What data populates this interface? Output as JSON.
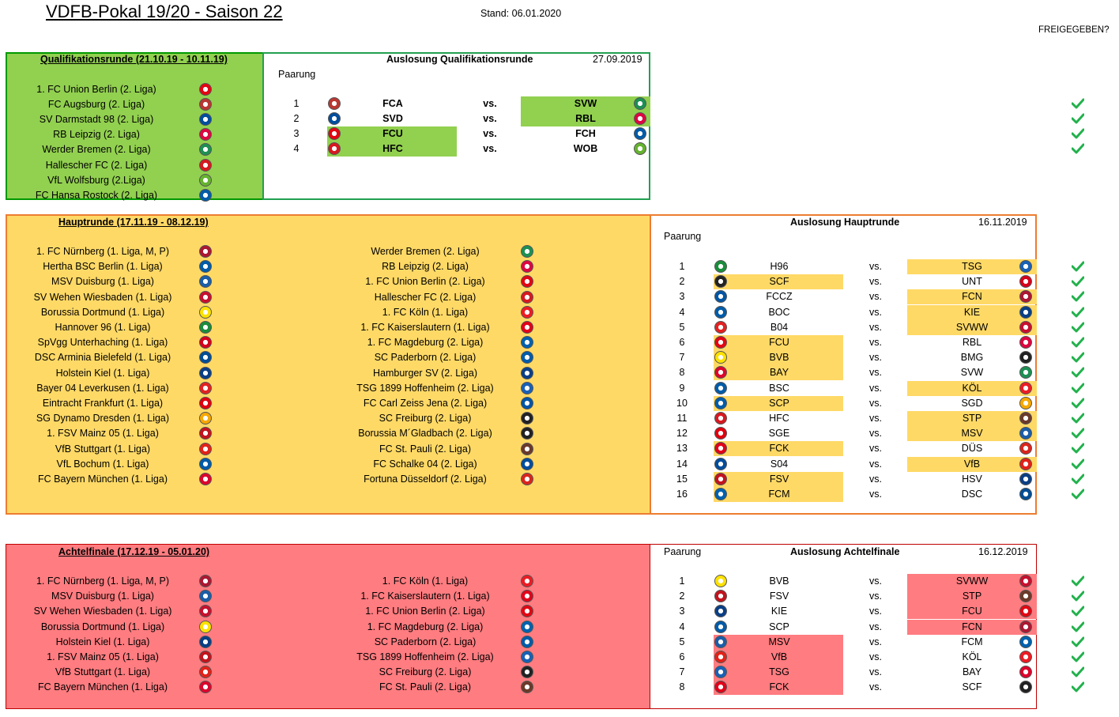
{
  "header": {
    "title": "VDFB-Pokal 19/20 - Saison 22",
    "stand": "Stand: 06.01.2020",
    "freigegeben": "FREIGEGEBEN?"
  },
  "colors": {
    "check": "#22b14c",
    "quali": "#92d050",
    "haupt": "#ffd966",
    "achtel": "#ff7c80"
  },
  "quali": {
    "title": "Qualifikationsrunde (21.10.19 - 10.11.19)",
    "draw_title": "Auslosung Qualifikationsrunde",
    "draw_date": "27.09.2019",
    "paarung": "Paarung",
    "vs": "vs.",
    "teams": [
      {
        "name": "1. FC Union Berlin (2. Liga)",
        "logo": "union-berlin-logo",
        "color": "#e30613"
      },
      {
        "name": "FC Augsburg (2. Liga)",
        "logo": "augsburg-logo",
        "color": "#ba3733"
      },
      {
        "name": "SV Darmstadt 98 (2. Liga)",
        "logo": "darmstadt-logo",
        "color": "#004e9f"
      },
      {
        "name": "RB Leipzig (2. Liga)",
        "logo": "leipzig-logo",
        "color": "#dd0741"
      },
      {
        "name": "Werder Bremen (2. Liga)",
        "logo": "werder-logo",
        "color": "#1d9053"
      },
      {
        "name": "Hallescher FC (2. Liga)",
        "logo": "halle-logo",
        "color": "#d71920"
      },
      {
        "name": "VfL Wolfsburg (2.Liga)",
        "logo": "wolfsburg-logo",
        "color": "#65b32e"
      },
      {
        "name": "FC Hansa Rostock (2. Liga)",
        "logo": "rostock-logo",
        "color": "#005ca9"
      }
    ],
    "matches": [
      {
        "n": "1",
        "home": "FCA",
        "home_logo": "augsburg-logo",
        "home_color": "#ba3733",
        "away": "SVW",
        "away_logo": "werder-logo",
        "away_color": "#1d9053",
        "winner": "away"
      },
      {
        "n": "2",
        "home": "SVD",
        "home_logo": "darmstadt-logo",
        "home_color": "#004e9f",
        "away": "RBL",
        "away_logo": "leipzig-logo",
        "away_color": "#dd0741",
        "winner": "away"
      },
      {
        "n": "3",
        "home": "FCU",
        "home_logo": "union-berlin-logo",
        "home_color": "#e30613",
        "away": "FCH",
        "away_logo": "rostock-logo",
        "away_color": "#005ca9",
        "winner": "home"
      },
      {
        "n": "4",
        "home": "HFC",
        "home_logo": "halle-logo",
        "home_color": "#d71920",
        "away": "WOB",
        "away_logo": "wolfsburg-logo",
        "away_color": "#65b32e",
        "winner": "home"
      }
    ]
  },
  "haupt": {
    "title": "Hauptrunde (17.11.19 - 08.12.19)",
    "draw_title": "Auslosung Hauptrunde",
    "draw_date": "16.11.2019",
    "paarung": "Paarung",
    "vs": "vs.",
    "left": [
      {
        "name": "1. FC Nürnberg (1. Liga, M, P)",
        "logo": "nuernberg-logo",
        "color": "#ad1732"
      },
      {
        "name": "Hertha BSC Berlin (1. Liga)",
        "logo": "hertha-logo",
        "color": "#005ca9"
      },
      {
        "name": "MSV Duisburg (1. Liga)",
        "logo": "duisburg-logo",
        "color": "#1b5ea8"
      },
      {
        "name": "SV Wehen Wiesbaden (1. Liga)",
        "logo": "wiesbaden-logo",
        "color": "#c8102e"
      },
      {
        "name": "Borussia Dortmund (1. Liga)",
        "logo": "dortmund-logo",
        "color": "#fde100"
      },
      {
        "name": "Hannover 96 (1. Liga)",
        "logo": "hannover-logo",
        "color": "#1a8d3b"
      },
      {
        "name": "SpVgg Unterhaching (1. Liga)",
        "logo": "unterhaching-logo",
        "color": "#d6001c"
      },
      {
        "name": "DSC Arminia Bielefeld (1. Liga)",
        "logo": "bielefeld-logo",
        "color": "#004e95"
      },
      {
        "name": "Holstein Kiel (1. Liga)",
        "logo": "kiel-logo",
        "color": "#0a3f86"
      },
      {
        "name": "Bayer 04 Leverkusen (1. Liga)",
        "logo": "leverkusen-logo",
        "color": "#e32221"
      },
      {
        "name": "Eintracht Frankfurt (1. Liga)",
        "logo": "frankfurt-logo",
        "color": "#e1000f"
      },
      {
        "name": "SG Dynamo Dresden (1. Liga)",
        "logo": "dresden-logo",
        "color": "#f6a800"
      },
      {
        "name": "1. FSV Mainz 05 (1. Liga)",
        "logo": "mainz-logo",
        "color": "#c3141e"
      },
      {
        "name": "VfB Stuttgart (1. Liga)",
        "logo": "stuttgart-logo",
        "color": "#e32219"
      },
      {
        "name": "VfL Bochum (1. Liga)",
        "logo": "bochum-logo",
        "color": "#005ca9"
      },
      {
        "name": "FC Bayern München (1. Liga)",
        "logo": "bayern-logo",
        "color": "#dc052d"
      }
    ],
    "right": [
      {
        "name": "Werder Bremen (2. Liga)",
        "logo": "werder-logo",
        "color": "#1d9053"
      },
      {
        "name": "RB Leipzig (2. Liga)",
        "logo": "leipzig-logo",
        "color": "#dd0741"
      },
      {
        "name": "1. FC Union Berlin (2. Liga)",
        "logo": "union-berlin-logo",
        "color": "#e30613"
      },
      {
        "name": "Hallescher FC (2. Liga)",
        "logo": "halle-logo",
        "color": "#d71920"
      },
      {
        "name": "1. FC Köln (1. Liga)",
        "logo": "koeln-logo",
        "color": "#ed1c24"
      },
      {
        "name": "1. FC Kaiserslautern (1. Liga)",
        "logo": "kaiserslautern-logo",
        "color": "#e2001a"
      },
      {
        "name": "1. FC Magdeburg (2. Liga)",
        "logo": "magdeburg-logo",
        "color": "#0062ae"
      },
      {
        "name": "SC Paderborn (2. Liga)",
        "logo": "paderborn-logo",
        "color": "#005ca9"
      },
      {
        "name": "Hamburger SV (2. Liga)",
        "logo": "hsv-logo",
        "color": "#0a3f86"
      },
      {
        "name": "TSG 1899 Hoffenheim (2. Liga)",
        "logo": "hoffenheim-logo",
        "color": "#1961b5"
      },
      {
        "name": "FC Carl Zeiss Jena (2. Liga)",
        "logo": "jena-logo",
        "color": "#0055a5"
      },
      {
        "name": "SC Freiburg (2. Liga)",
        "logo": "freiburg-logo",
        "color": "#222222"
      },
      {
        "name": "Borussia M´Gladbach (2. Liga)",
        "logo": "gladbach-logo",
        "color": "#222222"
      },
      {
        "name": "FC St. Pauli (2. Liga)",
        "logo": "stpauli-logo",
        "color": "#6b3a2a"
      },
      {
        "name": "FC Schalke 04 (2. Liga)",
        "logo": "schalke-logo",
        "color": "#004d9d"
      },
      {
        "name": "Fortuna Düsseldorf (2. Liga)",
        "logo": "duesseldorf-logo",
        "color": "#da251d"
      }
    ],
    "matches": [
      {
        "n": "1",
        "home": "H96",
        "home_color": "#1a8d3b",
        "away": "TSG",
        "away_color": "#1961b5",
        "winner": "away"
      },
      {
        "n": "2",
        "home": "SCF",
        "home_color": "#222222",
        "away": "UNT",
        "away_color": "#d6001c",
        "winner": "home"
      },
      {
        "n": "3",
        "home": "FCCZ",
        "home_color": "#0055a5",
        "away": "FCN",
        "away_color": "#ad1732",
        "winner": "away"
      },
      {
        "n": "4",
        "home": "BOC",
        "home_color": "#005ca9",
        "away": "KIE",
        "away_color": "#0a3f86",
        "winner": "away"
      },
      {
        "n": "5",
        "home": "B04",
        "home_color": "#e32221",
        "away": "SVWW",
        "away_color": "#c8102e",
        "winner": "away"
      },
      {
        "n": "6",
        "home": "FCU",
        "home_color": "#e30613",
        "away": "RBL",
        "away_color": "#dd0741",
        "winner": "home"
      },
      {
        "n": "7",
        "home": "BVB",
        "home_color": "#fde100",
        "away": "BMG",
        "away_color": "#222222",
        "winner": "home"
      },
      {
        "n": "8",
        "home": "BAY",
        "home_color": "#dc052d",
        "away": "SVW",
        "away_color": "#1d9053",
        "winner": "home"
      },
      {
        "n": "9",
        "home": "BSC",
        "home_color": "#005ca9",
        "away": "KÖL",
        "away_color": "#ed1c24",
        "winner": "away"
      },
      {
        "n": "10",
        "home": "SCP",
        "home_color": "#005ca9",
        "away": "SGD",
        "away_color": "#f6a800",
        "winner": "home"
      },
      {
        "n": "11",
        "home": "HFC",
        "home_color": "#d71920",
        "away": "STP",
        "away_color": "#6b3a2a",
        "winner": "away"
      },
      {
        "n": "12",
        "home": "SGE",
        "home_color": "#e1000f",
        "away": "MSV",
        "away_color": "#1b5ea8",
        "winner": "away"
      },
      {
        "n": "13",
        "home": "FCK",
        "home_color": "#e2001a",
        "away": "DÜS",
        "away_color": "#da251d",
        "winner": "home"
      },
      {
        "n": "14",
        "home": "S04",
        "home_color": "#004d9d",
        "away": "VfB",
        "away_color": "#e32219",
        "winner": "away"
      },
      {
        "n": "15",
        "home": "FSV",
        "home_color": "#c3141e",
        "away": "HSV",
        "away_color": "#0a3f86",
        "winner": "home"
      },
      {
        "n": "16",
        "home": "FCM",
        "home_color": "#0062ae",
        "away": "DSC",
        "away_color": "#004e95",
        "winner": "home"
      }
    ]
  },
  "achtel": {
    "title": "Achtelfinale (17.12.19 - 05.01.20)",
    "draw_title": "Auslosung Achtelfinale",
    "draw_date": "16.12.2019",
    "paarung": "Paarung",
    "vs": "vs.",
    "left": [
      {
        "name": "1. FC Nürnberg (1. Liga, M, P)",
        "logo": "nuernberg-logo",
        "color": "#ad1732"
      },
      {
        "name": "MSV Duisburg (1. Liga)",
        "logo": "duisburg-logo",
        "color": "#1b5ea8"
      },
      {
        "name": "SV Wehen Wiesbaden (1. Liga)",
        "logo": "wiesbaden-logo",
        "color": "#c8102e"
      },
      {
        "name": "Borussia Dortmund (1. Liga)",
        "logo": "dortmund-logo",
        "color": "#fde100"
      },
      {
        "name": "Holstein Kiel (1. Liga)",
        "logo": "kiel-logo",
        "color": "#0a3f86"
      },
      {
        "name": "1. FSV Mainz 05 (1. Liga)",
        "logo": "mainz-logo",
        "color": "#c3141e"
      },
      {
        "name": "VfB Stuttgart (1. Liga)",
        "logo": "stuttgart-logo",
        "color": "#e32219"
      },
      {
        "name": "FC Bayern München (1. Liga)",
        "logo": "bayern-logo",
        "color": "#dc052d"
      }
    ],
    "right": [
      {
        "name": "1. FC Köln (1. Liga)",
        "logo": "koeln-logo",
        "color": "#ed1c24"
      },
      {
        "name": "1. FC Kaiserslautern (1. Liga)",
        "logo": "kaiserslautern-logo",
        "color": "#e2001a"
      },
      {
        "name": "1. FC Union Berlin (2. Liga)",
        "logo": "union-berlin-logo",
        "color": "#e30613"
      },
      {
        "name": "1. FC Magdeburg (2. Liga)",
        "logo": "magdeburg-logo",
        "color": "#0062ae"
      },
      {
        "name": "SC Paderborn (2. Liga)",
        "logo": "paderborn-logo",
        "color": "#005ca9"
      },
      {
        "name": "TSG 1899 Hoffenheim (2. Liga)",
        "logo": "hoffenheim-logo",
        "color": "#1961b5"
      },
      {
        "name": "SC Freiburg (2. Liga)",
        "logo": "freiburg-logo",
        "color": "#222222"
      },
      {
        "name": "FC St. Pauli (2. Liga)",
        "logo": "stpauli-logo",
        "color": "#6b3a2a"
      }
    ],
    "matches": [
      {
        "n": "1",
        "home": "BVB",
        "home_color": "#fde100",
        "away": "SVWW",
        "away_color": "#c8102e",
        "winner": "away"
      },
      {
        "n": "2",
        "home": "FSV",
        "home_color": "#c3141e",
        "away": "STP",
        "away_color": "#6b3a2a",
        "winner": "away"
      },
      {
        "n": "3",
        "home": "KIE",
        "home_color": "#0a3f86",
        "away": "FCU",
        "away_color": "#e30613",
        "winner": "away"
      },
      {
        "n": "4",
        "home": "SCP",
        "home_color": "#005ca9",
        "away": "FCN",
        "away_color": "#ad1732",
        "winner": "away"
      },
      {
        "n": "5",
        "home": "MSV",
        "home_color": "#1b5ea8",
        "away": "FCM",
        "away_color": "#0062ae",
        "winner": "home"
      },
      {
        "n": "6",
        "home": "VfB",
        "home_color": "#e32219",
        "away": "KÖL",
        "away_color": "#ed1c24",
        "winner": "home"
      },
      {
        "n": "7",
        "home": "TSG",
        "home_color": "#1961b5",
        "away": "BAY",
        "away_color": "#dc052d",
        "winner": "home"
      },
      {
        "n": "8",
        "home": "FCK",
        "home_color": "#e2001a",
        "away": "SCF",
        "away_color": "#222222",
        "winner": "home"
      }
    ]
  }
}
